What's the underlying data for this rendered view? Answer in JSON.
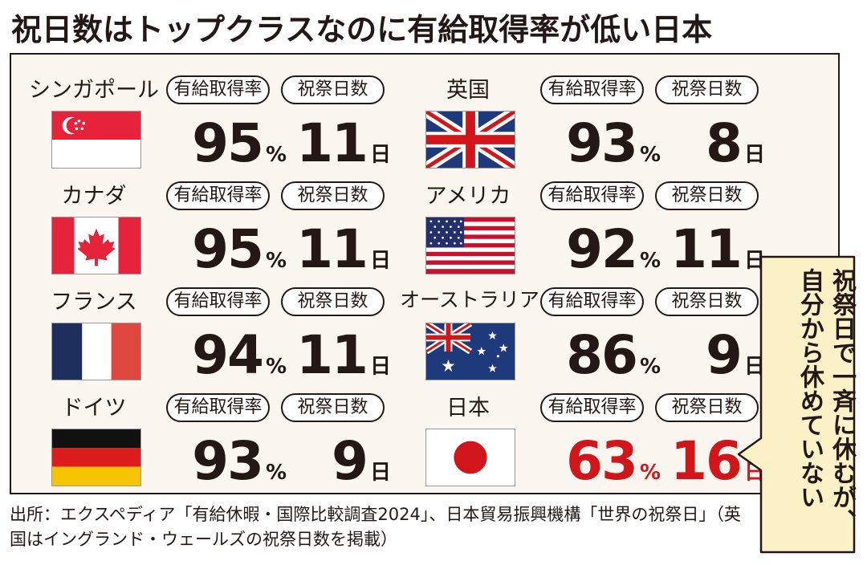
{
  "title": "祝日数はトップクラスなのに有給取得率が低い日本",
  "labels": {
    "rate": "有給取得率",
    "days": "祝祭日数"
  },
  "units": {
    "rate": "%",
    "days": "日"
  },
  "chart_data": {
    "type": "table",
    "columns": [
      "有給取得率",
      "祝祭日数"
    ],
    "rows": [
      {
        "country": "シンガポール",
        "flag": "singapore-flag-icon",
        "rate": "95",
        "days": "11"
      },
      {
        "country": "カナダ",
        "flag": "canada-flag-icon",
        "rate": "95",
        "days": "11"
      },
      {
        "country": "フランス",
        "flag": "france-flag-icon",
        "rate": "94",
        "days": "11"
      },
      {
        "country": "ドイツ",
        "flag": "germany-flag-icon",
        "rate": "93",
        "days": "9"
      },
      {
        "country": "英国",
        "flag": "uk-flag-icon",
        "rate": "93",
        "days": "8"
      },
      {
        "country": "アメリカ",
        "flag": "usa-flag-icon",
        "rate": "92",
        "days": "11"
      },
      {
        "country": "オーストラリア",
        "flag": "australia-flag-icon",
        "rate": "86",
        "days": "9"
      },
      {
        "country": "日本",
        "flag": "japan-flag-icon",
        "rate": "63",
        "days": "16"
      }
    ],
    "highlight_color": "#d0161b"
  },
  "callout": "祝祭日で一斉に休むが、自分から休めていない",
  "source": "出所：エクスペディア「有給休暇・国際比較調査2024」、日本貿易振興機構「世界の祝祭日」（英国はイングランド・ウェールズの祝祭日数を掲載）"
}
